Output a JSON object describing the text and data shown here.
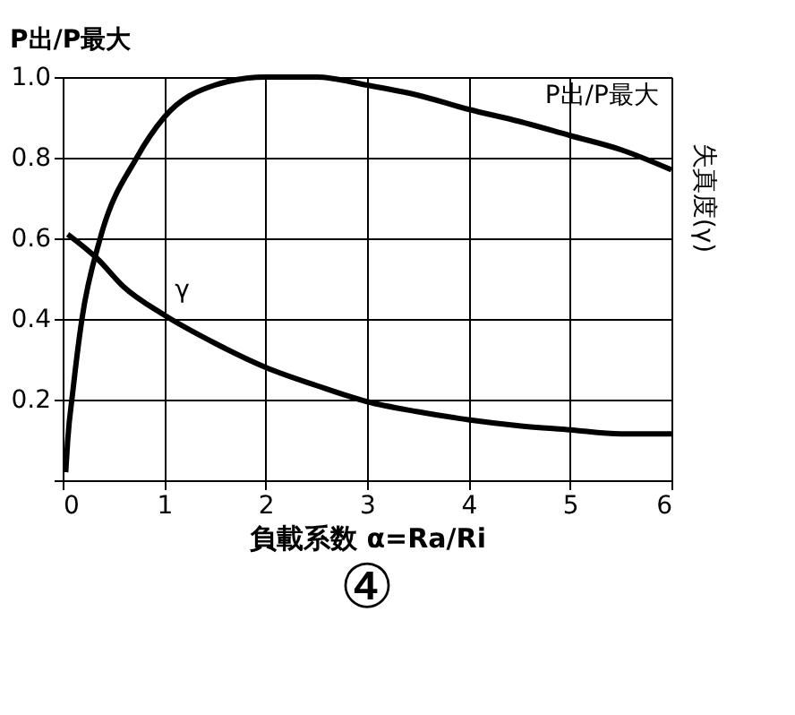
{
  "chart_data": {
    "type": "line",
    "xlabel": "負載系数 α=Ra/Ri",
    "ylabel": "P出/P最大",
    "y2label": "失真度(γ)",
    "series": [
      {
        "name": "P出/P最大",
        "color": "#000000",
        "x": [
          0.03,
          0.05,
          0.1,
          0.19,
          0.37,
          0.73,
          1,
          1.5,
          2,
          2.5,
          3,
          3.5,
          4,
          4.5,
          5,
          5.5,
          6
        ],
        "values": [
          0.02,
          0.1,
          0.22,
          0.4,
          0.6,
          0.8,
          0.9,
          0.98,
          1.0,
          1.0,
          0.98,
          0.955,
          0.92,
          0.89,
          0.855,
          0.82,
          0.77
        ]
      },
      {
        "name": "γ",
        "color": "#000000",
        "x": [
          0.05,
          0.34,
          0.6,
          1,
          1.5,
          2,
          2.5,
          3,
          3.5,
          4,
          4.5,
          5,
          5.5,
          6
        ],
        "values": [
          0.61,
          0.55,
          0.48,
          0.41,
          0.34,
          0.28,
          0.235,
          0.195,
          0.17,
          0.15,
          0.135,
          0.125,
          0.115,
          0.115
        ]
      }
    ],
    "xlim": [
      0,
      6
    ],
    "xticks": [
      0,
      1,
      2,
      3,
      4,
      5,
      6
    ],
    "ylim": [
      0,
      1
    ],
    "yticks": [
      {
        "value": 0,
        "label": null
      },
      0.2,
      0.4,
      0.6,
      0.8,
      {
        "value": 1,
        "label": "1.0"
      }
    ],
    "grid": true,
    "marker": "none",
    "line_style": "solid",
    "annotations": [
      "④"
    ]
  }
}
